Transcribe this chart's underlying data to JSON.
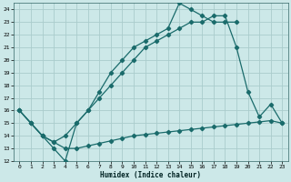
{
  "xlabel": "Humidex (Indice chaleur)",
  "bg_color": "#cce8e8",
  "grid_color": "#aacccc",
  "line_color": "#1a6b6b",
  "xlim": [
    -0.5,
    23.5
  ],
  "ylim": [
    12,
    24.5
  ],
  "xticks": [
    0,
    1,
    2,
    3,
    4,
    5,
    6,
    7,
    8,
    9,
    10,
    11,
    12,
    13,
    14,
    15,
    16,
    17,
    18,
    19,
    20,
    21,
    22,
    23
  ],
  "yticks": [
    12,
    13,
    14,
    15,
    16,
    17,
    18,
    19,
    20,
    21,
    22,
    23,
    24
  ],
  "series": [
    {
      "x": [
        0,
        1,
        2,
        3,
        4,
        5,
        6,
        7,
        8,
        9,
        10,
        11,
        12,
        13,
        14,
        15,
        16,
        17,
        18,
        19
      ],
      "y": [
        16,
        15,
        14,
        13,
        12,
        15,
        16,
        17.5,
        19,
        20,
        21,
        21.5,
        22,
        22.5,
        24.5,
        24,
        23.5,
        23,
        23,
        23
      ]
    },
    {
      "x": [
        0,
        1,
        2,
        3,
        4,
        5,
        6,
        7,
        8,
        9,
        10,
        11,
        12,
        13,
        14,
        15,
        16,
        17,
        18,
        19,
        20,
        21,
        22,
        23
      ],
      "y": [
        16,
        15,
        14,
        13.5,
        13,
        13,
        13.2,
        13.4,
        13.6,
        13.8,
        14,
        14.1,
        14.2,
        14.3,
        14.4,
        14.5,
        14.6,
        14.7,
        14.8,
        14.9,
        15.0,
        15.1,
        15.2,
        15
      ]
    },
    {
      "x": [
        0,
        1,
        2,
        3,
        4,
        5,
        6,
        7,
        8,
        9,
        10,
        11,
        12,
        13,
        14,
        15,
        16,
        17,
        18,
        19,
        20,
        21,
        22,
        23
      ],
      "y": [
        16,
        15,
        14,
        13.5,
        14,
        15,
        16,
        17,
        18,
        19,
        20,
        21,
        21.5,
        22,
        22.5,
        23,
        23,
        23.5,
        23.5,
        21,
        17.5,
        15.5,
        16.5,
        15
      ]
    }
  ]
}
